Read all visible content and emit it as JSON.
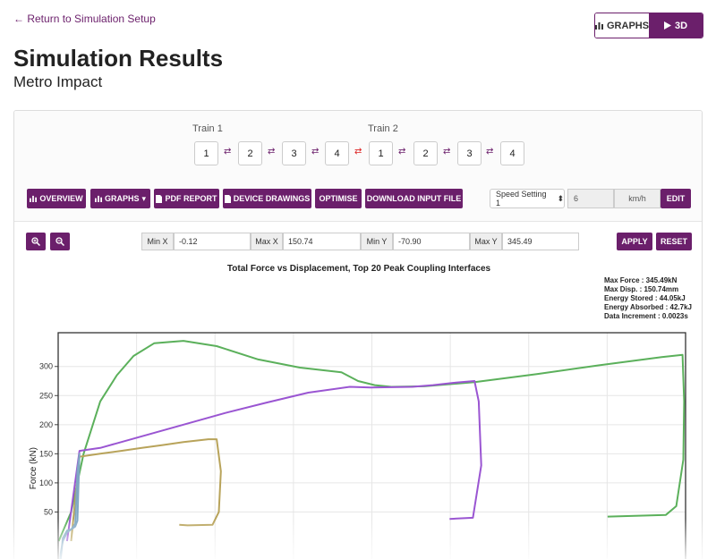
{
  "nav": {
    "back_label": "Return to Simulation Setup"
  },
  "view_toggle": {
    "graphs_label": "GRAPHS",
    "three_d_label": "3D"
  },
  "header": {
    "title": "Simulation Results",
    "subtitle": "Metro Impact"
  },
  "trains": [
    {
      "label": "Train 1",
      "cars": [
        "1",
        "2",
        "3",
        "4"
      ]
    },
    {
      "label": "Train 2",
      "cars": [
        "1",
        "2",
        "3",
        "4"
      ]
    }
  ],
  "toolbar": {
    "overview": "OVERVIEW",
    "graphs": "GRAPHS",
    "pdf_report": "PDF REPORT",
    "device_drawings": "DEVICE DRAWINGS",
    "optimise": "OPTIMISE",
    "download_input": "DOWNLOAD INPUT FILE",
    "speed_setting": "Speed Setting 1",
    "speed_value": "6",
    "speed_unit": "km/h",
    "edit": "EDIT"
  },
  "limits": {
    "min_x_label": "Min X",
    "min_x": "-0.12",
    "max_x_label": "Max X",
    "max_x": "150.74",
    "min_y_label": "Min Y",
    "min_y": "-70.90",
    "max_y_label": "Max Y",
    "max_y": "345.49",
    "apply": "APPLY",
    "reset": "RESET"
  },
  "stats": {
    "max_force": "Max Force : 345.49kN",
    "max_disp": "Max Disp. : 150.74mm",
    "energy_stored": "Energy Stored : 44.05kJ",
    "energy_absorbed": "Energy Absorbed : 42.7kJ",
    "data_increment": "Data Increment : 0.0023s"
  },
  "colors": {
    "accent": "#6b1f6b",
    "coupler_alert": "#dd2222"
  },
  "chart_data": {
    "type": "line",
    "title": "Total Force vs Displacement, Top 20 Peak Coupling Interfaces",
    "ylabel": "Force (kN)",
    "xlabel": "",
    "yticks": [
      50,
      100,
      150,
      200,
      250,
      300
    ],
    "ylim": [
      -70.9,
      345.49
    ],
    "xlim": [
      -0.12,
      150.74
    ],
    "grid": true,
    "series": [
      {
        "color": "#5bb05b",
        "x": [
          0,
          3,
          6,
          10,
          14,
          18,
          23,
          30,
          38,
          48,
          58,
          68,
          72,
          76,
          80,
          88,
          100,
          115,
          130,
          145,
          150,
          150.4,
          150.2,
          148.5,
          146,
          132
        ],
        "y": [
          0,
          50,
          150,
          240,
          285,
          318,
          340,
          344,
          335,
          312,
          298,
          290,
          275,
          268,
          265,
          266,
          273,
          287,
          302,
          316,
          320,
          240,
          140,
          60,
          45,
          42
        ]
      },
      {
        "color": "#9a55d2",
        "x": [
          2,
          5,
          10,
          20,
          30,
          40,
          50,
          60,
          70,
          75,
          85,
          90,
          95,
          100,
          101,
          101.6,
          99.6,
          94
        ],
        "y": [
          0,
          155,
          160,
          180,
          200,
          220,
          238,
          255,
          265,
          264,
          265,
          268,
          272,
          275,
          240,
          130,
          40,
          38
        ]
      },
      {
        "color": "#b8a35a",
        "x": [
          3,
          5,
          10,
          15,
          20,
          25,
          30,
          36,
          38,
          39,
          38.5,
          37,
          31,
          29
        ],
        "y": [
          0,
          145,
          150,
          155,
          160,
          165,
          170,
          175,
          175,
          120,
          50,
          28,
          27,
          28
        ]
      },
      {
        "color": "#7fa7c2",
        "x": [
          0,
          0.5,
          1,
          2,
          3,
          4,
          4.5,
          5,
          4.5,
          4,
          3,
          2,
          1,
          0.5,
          0
        ],
        "y": [
          -70,
          -20,
          0,
          15,
          20,
          25,
          35,
          150,
          120,
          30,
          20,
          18,
          5,
          -30,
          -70
        ]
      }
    ]
  }
}
